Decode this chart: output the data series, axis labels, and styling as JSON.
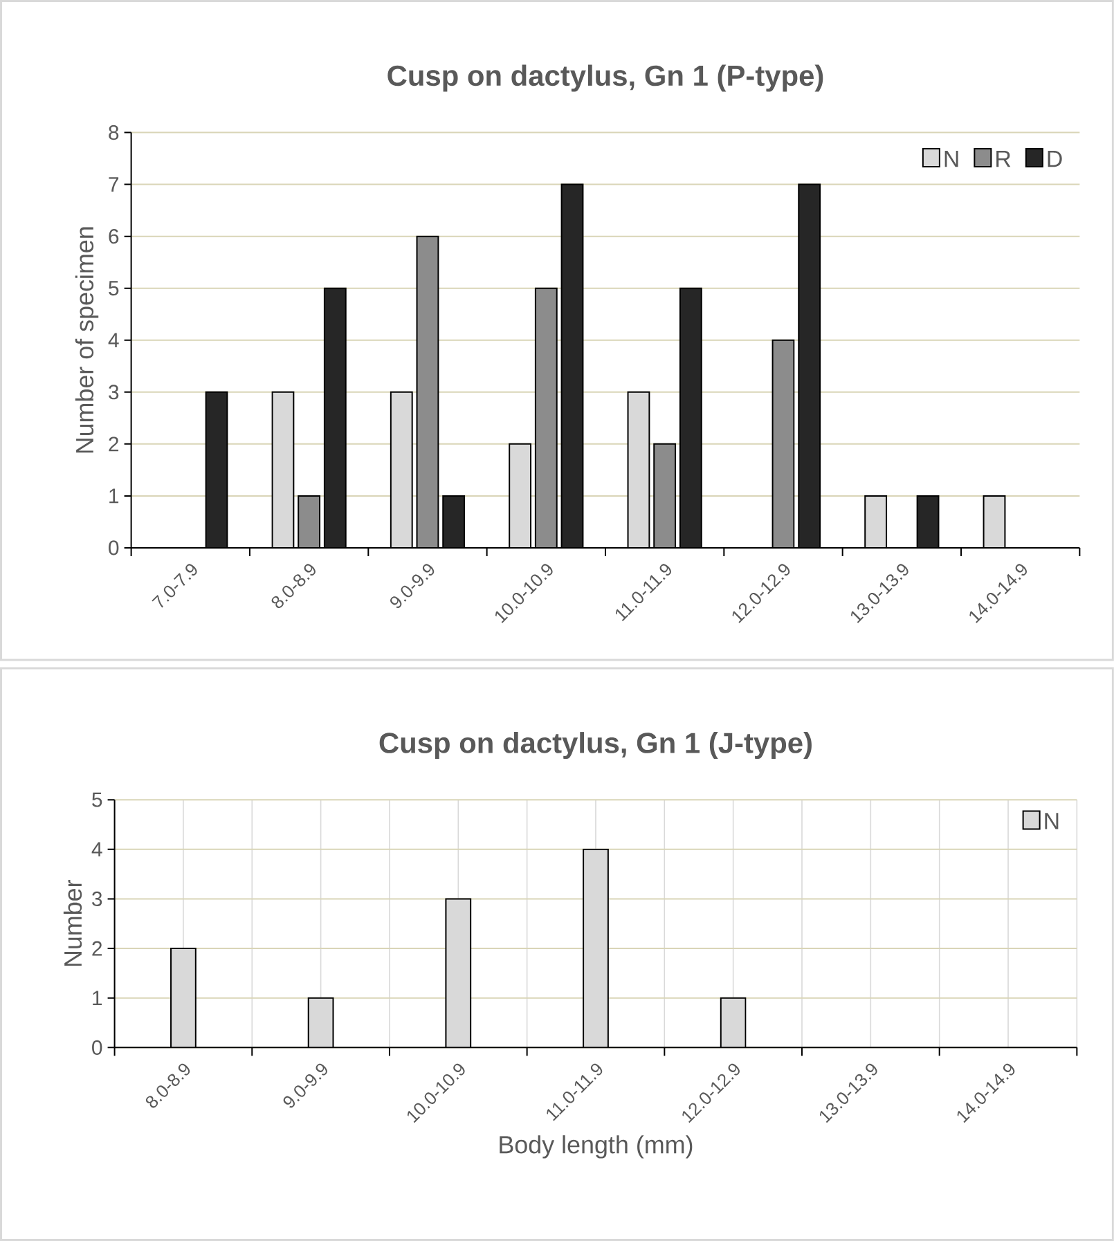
{
  "chart_data": [
    {
      "type": "bar",
      "title": "Cusp on dactylus, Gn 1 (P-type)",
      "ylabel": "Number of specimen",
      "categories": [
        "7.0-7.9",
        "8.0-8.9",
        "9.0-9.9",
        "10.0-10.9",
        "11.0-11.9",
        "12.0-12.9",
        "13.0-13.9",
        "14.0-14.9"
      ],
      "series": [
        {
          "name": "N",
          "color": "#d9d9d9",
          "values": [
            null,
            3,
            3,
            2,
            3,
            null,
            1,
            1
          ]
        },
        {
          "name": "R",
          "color": "#8c8c8c",
          "values": [
            null,
            1,
            6,
            5,
            2,
            4,
            null,
            null
          ]
        },
        {
          "name": "D",
          "color": "#262626",
          "values": [
            3,
            5,
            1,
            7,
            5,
            7,
            1,
            null
          ]
        }
      ],
      "ylim": [
        0,
        8
      ],
      "yticks": [
        0,
        1,
        2,
        3,
        4,
        5,
        6,
        7,
        8
      ],
      "grid": "y",
      "legend": "top right"
    },
    {
      "type": "bar",
      "title": "Cusp on dactylus, Gn 1 (J-type)",
      "ylabel": "Number",
      "xlabel": "Body length (mm)",
      "categories": [
        "8.0-8.9",
        "9.0-9.9",
        "10.0-10.9",
        "11.0-11.9",
        "12.0-12.9",
        "13.0-13.9",
        "14.0-14.9"
      ],
      "series": [
        {
          "name": "N",
          "color": "#d9d9d9",
          "values": [
            2,
            1,
            3,
            4,
            1,
            null,
            null
          ]
        }
      ],
      "ylim": [
        0,
        5
      ],
      "yticks": [
        0,
        1,
        2,
        3,
        4,
        5
      ],
      "grid": true,
      "legend": "top right"
    }
  ]
}
